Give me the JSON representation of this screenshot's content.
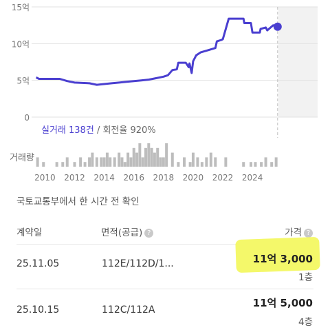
{
  "chart_data": {
    "type": "line",
    "y_ticks": [
      "15억",
      "10억",
      "5억",
      "0"
    ],
    "y_tick_values": [
      15,
      10,
      5,
      0
    ],
    "ylim": [
      0,
      15
    ],
    "x_ticks": [
      "2010",
      "2012",
      "2014",
      "2016",
      "2018",
      "2020",
      "2022",
      "2024"
    ],
    "x_tick_values": [
      2010,
      2012,
      2014,
      2016,
      2018,
      2020,
      2022,
      2024
    ],
    "xlim": [
      2009.1,
      2028.4
    ],
    "series_color": "#4a3fd0",
    "price_series": {
      "x": [
        2009.4,
        2009.6,
        2010.0,
        2011.0,
        2011.5,
        2012.0,
        2013.0,
        2013.5,
        2014.0,
        2014.5,
        2015.0,
        2015.5,
        2016.0,
        2016.5,
        2017.0,
        2017.5,
        2018.0,
        2018.3,
        2018.6,
        2018.9,
        2019.0,
        2019.5,
        2019.7,
        2019.75,
        2019.9,
        2020.0,
        2020.2,
        2020.5,
        2021.0,
        2021.5,
        2021.6,
        2021.9,
        2022.0,
        2022.4,
        2023.0,
        2023.4,
        2023.45,
        2023.9,
        2024.0,
        2024.5,
        2024.55,
        2024.9,
        2025.0,
        2025.4,
        2025.7
      ],
      "y": [
        5.4,
        5.2,
        5.2,
        5.2,
        4.9,
        4.7,
        4.6,
        4.4,
        4.5,
        4.6,
        4.7,
        4.8,
        4.9,
        5.0,
        5.1,
        5.3,
        5.5,
        5.7,
        6.4,
        6.5,
        7.4,
        7.4,
        6.8,
        7.3,
        6.0,
        7.6,
        8.4,
        8.8,
        9.1,
        9.4,
        10.3,
        10.5,
        10.6,
        13.4,
        13.4,
        13.4,
        12.8,
        12.8,
        11.5,
        11.5,
        12.0,
        12.2,
        11.8,
        12.5,
        12.3
      ]
    },
    "trade_label": "실거래 138건",
    "turnover_label": "회전율 920%",
    "volume_label": "거래량",
    "volume_series": {
      "x": [
        2009.5,
        2009.9,
        2010.8,
        2011.2,
        2011.5,
        2012.0,
        2012.4,
        2012.7,
        2013.0,
        2013.2,
        2013.5,
        2013.8,
        2014.0,
        2014.2,
        2014.4,
        2014.7,
        2015.0,
        2015.2,
        2015.4,
        2015.6,
        2015.8,
        2016.0,
        2016.2,
        2016.4,
        2016.6,
        2016.8,
        2017.0,
        2017.2,
        2017.4,
        2017.6,
        2017.8,
        2018.0,
        2018.2,
        2018.6,
        2019.0,
        2019.4,
        2019.8,
        2020.0,
        2020.3,
        2020.6,
        2020.9,
        2021.2,
        2021.5,
        2022.2,
        2023.4,
        2023.9,
        2024.2,
        2024.6,
        2024.9,
        2025.3,
        2025.6
      ],
      "values": [
        2,
        1,
        1,
        1,
        2,
        1,
        2,
        1,
        2,
        3,
        2,
        2,
        2,
        3,
        2,
        2,
        3,
        2,
        1,
        3,
        2,
        4,
        3,
        5,
        2,
        4,
        5,
        4,
        3,
        4,
        2,
        2,
        5,
        3,
        1,
        2,
        1,
        3,
        2,
        1,
        2,
        3,
        2,
        2,
        1,
        1,
        1,
        1,
        2,
        1,
        2
      ]
    }
  },
  "source_text": "국토교통부에서 한 시간 전 확인",
  "table": {
    "headers": {
      "date": "계약일",
      "area": "면적(공급)",
      "price": "가격"
    },
    "help_icon": "question-circle-icon",
    "rows": [
      {
        "date": "25.11.05",
        "area": "112E/112D/1...",
        "price": "11억 3,000",
        "floor": "1층",
        "highlighted": true
      },
      {
        "date": "25.10.15",
        "area": "112C/112A",
        "price": "11억 5,000",
        "floor": "4층",
        "highlighted": false
      }
    ]
  }
}
